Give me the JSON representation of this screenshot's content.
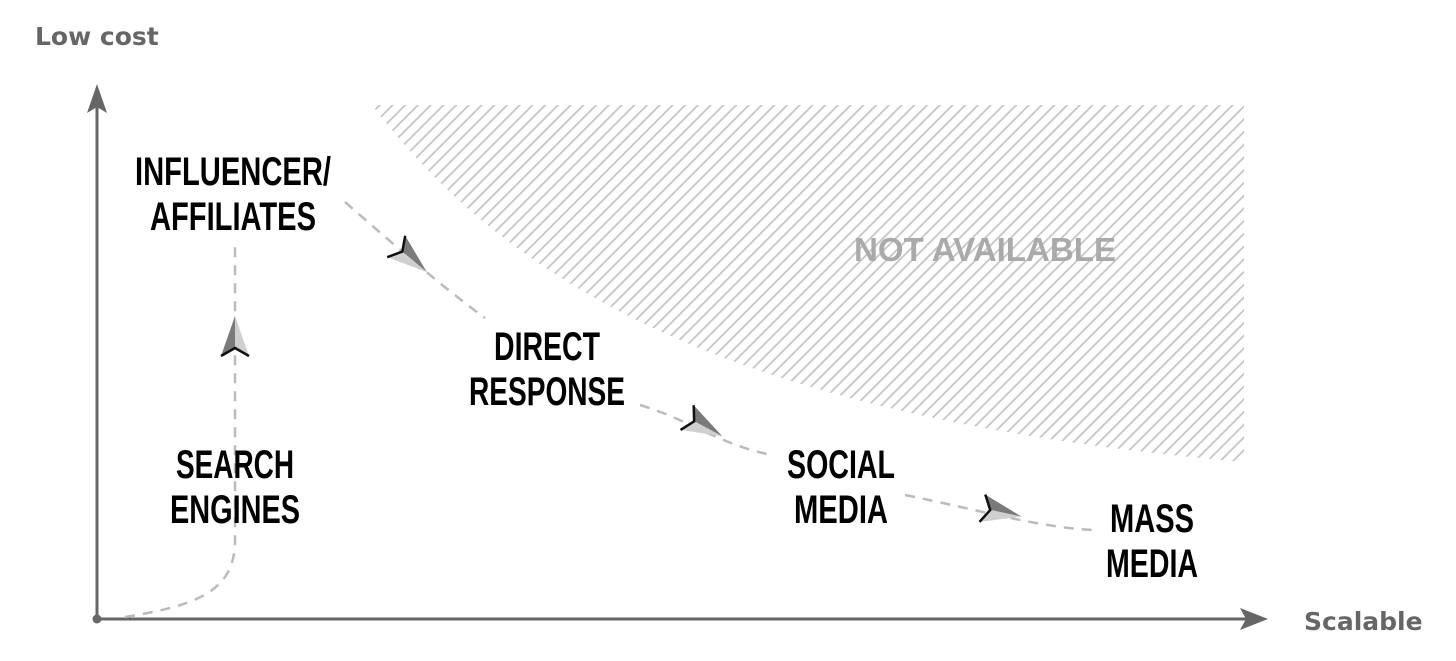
{
  "axes": {
    "y_label": "Low cost",
    "x_label": "Scalable"
  },
  "region": {
    "label": "NOT AVAILABLE"
  },
  "nodes": [
    {
      "id": "search-engines",
      "lines": [
        "SEARCH",
        "ENGINES"
      ]
    },
    {
      "id": "influencer-affiliates",
      "lines": [
        "INFLUENCER/",
        "AFFILIATES"
      ]
    },
    {
      "id": "direct-response",
      "lines": [
        "DIRECT",
        "RESPONSE"
      ]
    },
    {
      "id": "social-media",
      "lines": [
        "SOCIAL",
        "MEDIA"
      ]
    },
    {
      "id": "mass-media",
      "lines": [
        "MASS",
        "MEDIA"
      ]
    }
  ],
  "edges": [
    {
      "from": "search-engines",
      "to": "influencer-affiliates"
    },
    {
      "from": "influencer-affiliates",
      "to": "direct-response"
    },
    {
      "from": "direct-response",
      "to": "social-media"
    },
    {
      "from": "social-media",
      "to": "mass-media"
    }
  ],
  "colors": {
    "axis": "#666666",
    "hatch": "#c4c4c4",
    "text": "#000000",
    "region_text": "#aaaaaa",
    "path": "#bbbbbb"
  }
}
